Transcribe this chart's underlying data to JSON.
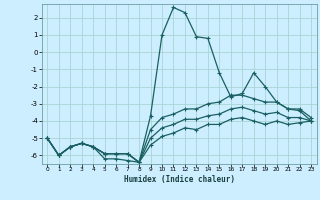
{
  "title": "",
  "xlabel": "Humidex (Indice chaleur)",
  "bg_color": "#cceeff",
  "grid_color": "#aad4d4",
  "line_color": "#1a6060",
  "xlim": [
    -0.5,
    23.5
  ],
  "ylim": [
    -6.5,
    2.8
  ],
  "xticks": [
    0,
    1,
    2,
    3,
    4,
    5,
    6,
    7,
    8,
    9,
    10,
    11,
    12,
    13,
    14,
    15,
    16,
    17,
    18,
    19,
    20,
    21,
    22,
    23
  ],
  "yticks": [
    -6,
    -5,
    -4,
    -3,
    -2,
    -1,
    0,
    1,
    2
  ],
  "line1_x": [
    0,
    1,
    2,
    3,
    4,
    5,
    6,
    7,
    8,
    9,
    10,
    11,
    12,
    13,
    14,
    15,
    16,
    17,
    18,
    19,
    20,
    21,
    22,
    23
  ],
  "line1_y": [
    -5.0,
    -6.0,
    -5.5,
    -5.3,
    -5.5,
    -6.2,
    -6.2,
    -6.3,
    -6.4,
    -3.7,
    1.0,
    2.6,
    2.3,
    0.9,
    0.8,
    -1.2,
    -2.6,
    -2.4,
    -1.2,
    -2.0,
    -2.9,
    -3.3,
    -3.4,
    -4.0
  ],
  "line2_x": [
    0,
    1,
    2,
    3,
    4,
    5,
    6,
    7,
    8,
    9,
    10,
    11,
    12,
    13,
    14,
    15,
    16,
    17,
    18,
    19,
    20,
    21,
    22,
    23
  ],
  "line2_y": [
    -5.0,
    -6.0,
    -5.5,
    -5.3,
    -5.5,
    -5.9,
    -5.9,
    -5.9,
    -6.4,
    -4.5,
    -3.8,
    -3.6,
    -3.3,
    -3.3,
    -3.0,
    -2.9,
    -2.5,
    -2.5,
    -2.7,
    -2.9,
    -2.9,
    -3.3,
    -3.3,
    -3.8
  ],
  "line3_x": [
    0,
    1,
    2,
    3,
    4,
    5,
    6,
    7,
    8,
    9,
    10,
    11,
    12,
    13,
    14,
    15,
    16,
    17,
    18,
    19,
    20,
    21,
    22,
    23
  ],
  "line3_y": [
    -5.0,
    -6.0,
    -5.5,
    -5.3,
    -5.5,
    -5.9,
    -5.9,
    -5.9,
    -6.4,
    -5.0,
    -4.4,
    -4.2,
    -3.9,
    -3.9,
    -3.7,
    -3.6,
    -3.3,
    -3.2,
    -3.4,
    -3.6,
    -3.5,
    -3.8,
    -3.8,
    -4.0
  ],
  "line4_x": [
    0,
    1,
    2,
    3,
    4,
    5,
    6,
    7,
    8,
    9,
    10,
    11,
    12,
    13,
    14,
    15,
    16,
    17,
    18,
    19,
    20,
    21,
    22,
    23
  ],
  "line4_y": [
    -5.0,
    -6.0,
    -5.5,
    -5.3,
    -5.5,
    -5.9,
    -5.9,
    -5.9,
    -6.4,
    -5.4,
    -4.9,
    -4.7,
    -4.4,
    -4.5,
    -4.2,
    -4.2,
    -3.9,
    -3.8,
    -4.0,
    -4.2,
    -4.0,
    -4.2,
    -4.1,
    -4.0
  ]
}
